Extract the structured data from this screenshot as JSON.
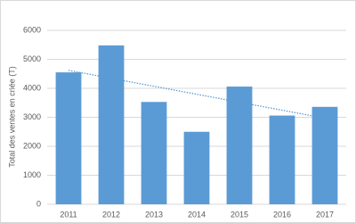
{
  "chart_data": {
    "type": "bar",
    "y_label": "Total des ventes en criée (T)",
    "categories": [
      "2011",
      "2012",
      "2013",
      "2014",
      "2015",
      "2016",
      "2017"
    ],
    "values": [
      4550,
      5480,
      3530,
      2500,
      4060,
      3060,
      3360
    ],
    "color": "#5b9bd5",
    "ylim": [
      0,
      6000
    ],
    "yticks": [
      0,
      1000,
      2000,
      3000,
      4000,
      5000,
      6000
    ],
    "grid": true,
    "trendline": {
      "values": [
        4620,
        2970
      ],
      "color": "#5b9bd5",
      "style": "dotted"
    }
  }
}
